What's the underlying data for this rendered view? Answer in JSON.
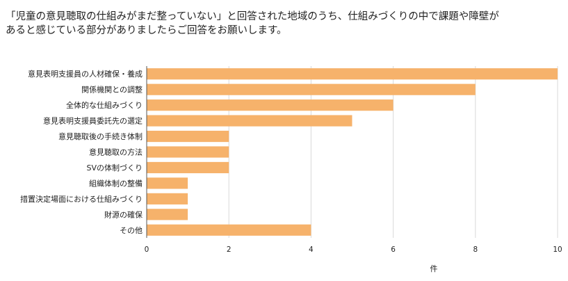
{
  "chart_data": {
    "type": "bar",
    "orientation": "horizontal",
    "title_lines": [
      "「児童の意見聴取の仕組みがまだ整っていない」と回答された地域のうち、仕組みづくりの中で課題や障壁が",
      "あると感じている部分がありましたらご回答をお願いします。"
    ],
    "categories": [
      "意見表明支援員の人材確保・養成",
      "関係機関との調整",
      "全体的な仕組みづくり",
      "意見表明支援員委託先の選定",
      "意見聴取後の手続き体制",
      "意見聴取の方法",
      "SVの体制づくり",
      "組織体制の整備",
      "措置決定場面における仕組みづくり",
      "財源の確保",
      "その他"
    ],
    "values": [
      10,
      8,
      6,
      5,
      2,
      2,
      2,
      1,
      1,
      1,
      4
    ],
    "xlabel": "件",
    "xlim": [
      0,
      10
    ],
    "xticks": [
      0,
      2,
      4,
      6,
      8,
      10
    ],
    "grid": true,
    "bar_color": "#f6b26b",
    "grid_color": "#d9d9d9"
  }
}
